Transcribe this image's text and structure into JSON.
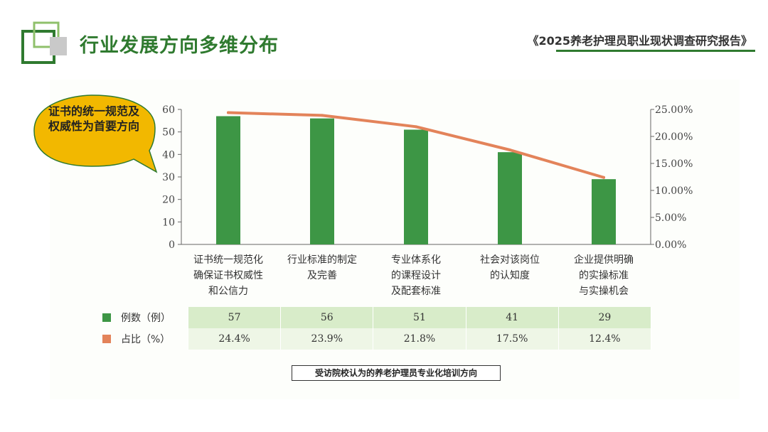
{
  "page_title": "行业发展方向多维分布",
  "report_name": "《2025养老护理员职业现状调查研究报告》",
  "callout": "证书的统一规范及权威性为首要方向",
  "caption": "受访院校认为的养老护理员专业化培训方向",
  "colors": {
    "accent": "#2f7a2f",
    "bar": "#3d9645",
    "line": "#e3835a",
    "callout_fill": "#f2b800",
    "table_row_1": "#d8ecc9",
    "table_row_2": "#eef6e6"
  },
  "chart_data": {
    "type": "bar",
    "categories": [
      [
        "证书统一规范化",
        "确保证书权威性",
        "和公信力"
      ],
      [
        "行业标准的制定",
        "及完善"
      ],
      [
        "专业体系化",
        "的课程设计",
        "及配套标准"
      ],
      [
        "社会对该岗位",
        "的认知度"
      ],
      [
        "企业提供明确",
        "的实操标准",
        "与实操机会"
      ]
    ],
    "series": [
      {
        "name": "例数（例）",
        "type": "bar",
        "axis": "left",
        "values": [
          57,
          56,
          51,
          41,
          29
        ]
      },
      {
        "name": "占比（%）",
        "type": "line",
        "axis": "right",
        "values": [
          24.4,
          23.9,
          21.8,
          17.5,
          12.4
        ]
      }
    ],
    "ylim_left": [
      0,
      60
    ],
    "yticks_left": [
      "0",
      "10",
      "20",
      "30",
      "40",
      "50",
      "60"
    ],
    "ylim_right": [
      0,
      25
    ],
    "yticks_right": [
      "0.00%",
      "5.00%",
      "10.00%",
      "15.00%",
      "20.00%",
      "25.00%"
    ],
    "table": {
      "rows": [
        {
          "label": "例数（例）",
          "values": [
            "57",
            "56",
            "51",
            "41",
            "29"
          ]
        },
        {
          "label": "占比（%）",
          "values": [
            "24.4%",
            "23.9%",
            "21.8%",
            "17.5%",
            "12.4%"
          ]
        }
      ]
    },
    "grid": false
  }
}
